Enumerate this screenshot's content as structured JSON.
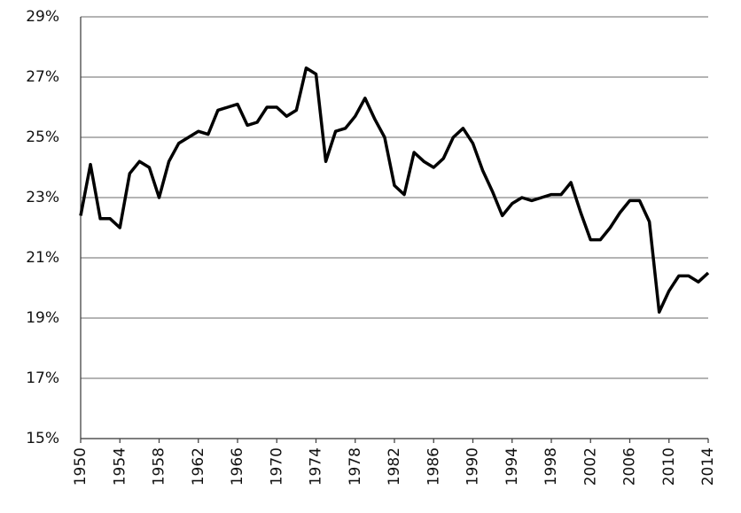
{
  "chart_data": {
    "type": "line",
    "x": [
      1950,
      1951,
      1952,
      1953,
      1954,
      1955,
      1956,
      1957,
      1958,
      1959,
      1960,
      1961,
      1962,
      1963,
      1964,
      1965,
      1966,
      1967,
      1968,
      1969,
      1970,
      1971,
      1972,
      1973,
      1974,
      1975,
      1976,
      1977,
      1978,
      1979,
      1980,
      1981,
      1982,
      1983,
      1984,
      1985,
      1986,
      1987,
      1988,
      1989,
      1990,
      1991,
      1992,
      1993,
      1994,
      1995,
      1996,
      1997,
      1998,
      1999,
      2000,
      2001,
      2002,
      2003,
      2004,
      2005,
      2006,
      2007,
      2008,
      2009,
      2010,
      2011,
      2012,
      2013,
      2014
    ],
    "values": [
      22.4,
      24.1,
      22.3,
      22.3,
      22.0,
      23.8,
      24.2,
      24.0,
      23.0,
      24.2,
      24.8,
      25.0,
      25.2,
      25.1,
      25.9,
      26.0,
      26.1,
      25.4,
      25.5,
      26.0,
      26.0,
      25.7,
      25.9,
      27.3,
      27.1,
      24.2,
      25.2,
      25.3,
      25.7,
      26.3,
      25.6,
      25.0,
      23.4,
      23.1,
      24.5,
      24.2,
      24.0,
      24.3,
      25.0,
      25.3,
      24.8,
      23.9,
      23.2,
      22.4,
      22.8,
      23.0,
      22.9,
      23.0,
      23.1,
      23.1,
      23.5,
      22.5,
      21.6,
      21.6,
      22.0,
      22.5,
      22.9,
      22.9,
      22.2,
      19.2,
      19.9,
      20.4,
      20.4,
      20.2,
      20.5
    ],
    "color": "#000000",
    "xlim": [
      1950,
      2014
    ],
    "xticks": [
      1950,
      1954,
      1958,
      1962,
      1966,
      1970,
      1974,
      1978,
      1982,
      1986,
      1990,
      1994,
      1998,
      2002,
      2006,
      2010,
      2014
    ],
    "ylim": [
      15,
      29
    ],
    "yticks": [
      {
        "value": 15,
        "label": "15%"
      },
      {
        "value": 17,
        "label": "17%"
      },
      {
        "value": 19,
        "label": "19%"
      },
      {
        "value": 21,
        "label": "21%"
      },
      {
        "value": 23,
        "label": "23%"
      },
      {
        "value": 25,
        "label": "25%"
      },
      {
        "value": 27,
        "label": "27%"
      },
      {
        "value": 29,
        "label": "29%"
      }
    ],
    "grid": true
  }
}
